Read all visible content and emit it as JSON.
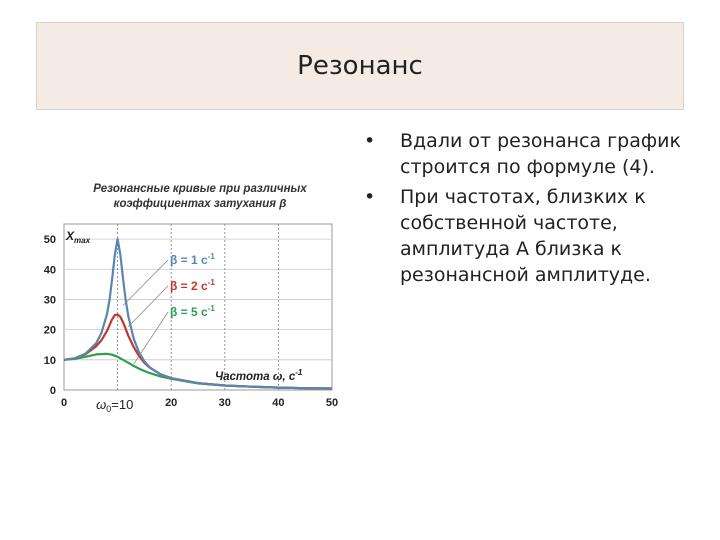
{
  "slide": {
    "title": "Резонанс",
    "bullets": [
      "Вдали от резонанса график строится по формуле (4).",
      "При частотах, близких к собственной частоте, амплитуда А близка к резонансной амплитуде."
    ],
    "bullet_symbol": "•"
  },
  "chart_data": {
    "type": "line",
    "title_lines": [
      "Резонансные кривые при различных",
      "коэффициентах затухания β"
    ],
    "ylabel": "X",
    "ylabel_sub": "max",
    "xlabel": "Частота ω, с",
    "xlabel_sup": "-1",
    "resonance_label": "ω",
    "resonance_label_sub": "0",
    "resonance_label_value": "=10",
    "xlim": [
      0,
      50
    ],
    "ylim": [
      0,
      55
    ],
    "x_ticks": [
      "0",
      "20",
      "30",
      "40",
      "50"
    ],
    "y_ticks": [
      "0",
      "10",
      "20",
      "30",
      "40",
      "50"
    ],
    "grid": true,
    "series": [
      {
        "name": "β = 1 с",
        "name_sup": "-1",
        "color": "#5b84b1",
        "x": [
          0,
          2,
          4,
          6,
          7,
          8,
          8.5,
          9,
          9.5,
          10,
          10.5,
          11,
          11.5,
          12,
          13,
          14,
          15,
          16,
          18,
          20,
          25,
          30,
          35,
          40,
          45,
          50
        ],
        "y": [
          10,
          10.5,
          12,
          15.5,
          19,
          25,
          30,
          37,
          45,
          50,
          45,
          37,
          30,
          24.5,
          17,
          12.5,
          9.5,
          7.5,
          5.2,
          3.9,
          2.3,
          1.5,
          1.1,
          0.8,
          0.6,
          0.5
        ]
      },
      {
        "name": "β = 2 с",
        "name_sup": "-1",
        "color": "#c0392b",
        "x": [
          0,
          2,
          4,
          6,
          7,
          8,
          8.5,
          9,
          9.5,
          10,
          10.5,
          11,
          11.5,
          12,
          13,
          14,
          15,
          16,
          18,
          20,
          25,
          30,
          35,
          40,
          45,
          50
        ],
        "y": [
          10,
          10.5,
          11.8,
          14.5,
          16.5,
          19.5,
          21.5,
          23.5,
          24.8,
          25,
          24.3,
          22.5,
          20.3,
          18,
          14.2,
          11.3,
          9,
          7.4,
          5.2,
          3.9,
          2.3,
          1.5,
          1.1,
          0.8,
          0.6,
          0.5
        ]
      },
      {
        "name": "β = 5 с",
        "name_sup": "-1",
        "color": "#2e9e4f",
        "x": [
          0,
          2,
          4,
          6,
          8,
          9,
          10,
          11,
          12,
          13,
          14,
          15,
          16,
          18,
          20,
          25,
          30,
          35,
          40,
          45,
          50
        ],
        "y": [
          10,
          10.3,
          11,
          11.8,
          12,
          11.7,
          11,
          10,
          9,
          8,
          7.1,
          6.3,
          5.6,
          4.5,
          3.7,
          2.2,
          1.5,
          1.1,
          0.8,
          0.6,
          0.5
        ]
      }
    ]
  }
}
